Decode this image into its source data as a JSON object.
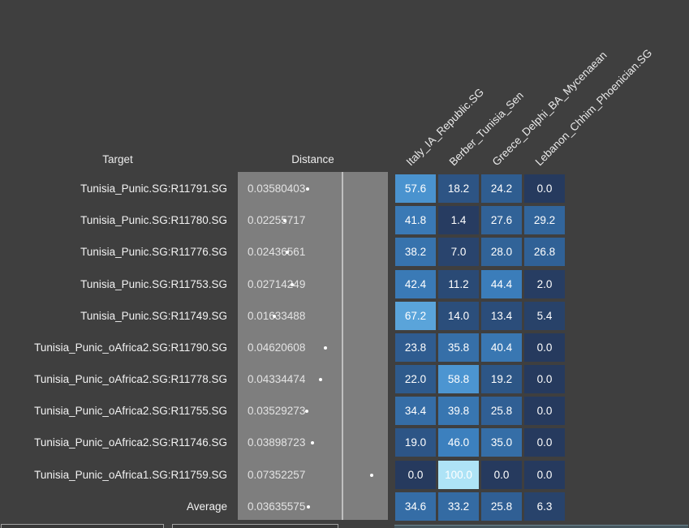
{
  "page": {
    "background": "#3f3f3f",
    "text_color": "#ececec"
  },
  "chart_data": {
    "type": "heatmap",
    "target_header": "Target",
    "distance_header": "Distance",
    "columns": [
      "Italy_IA_Republic.SG",
      "Berber_Tunisia_Sen",
      "Greece_Delphi_BA_Mycenaean",
      "Lebanon_Chhim_Phoenician.SG"
    ],
    "rows": [
      {
        "target": "Tunisia_Punic.SG:R11791.SG",
        "distance": "0.03580403",
        "values": [
          57.6,
          18.2,
          24.2,
          0.0
        ]
      },
      {
        "target": "Tunisia_Punic.SG:R11780.SG",
        "distance": "0.02255717",
        "values": [
          41.8,
          1.4,
          27.6,
          29.2
        ]
      },
      {
        "target": "Tunisia_Punic.SG:R11776.SG",
        "distance": "0.02436561",
        "values": [
          38.2,
          7.0,
          28.0,
          26.8
        ]
      },
      {
        "target": "Tunisia_Punic.SG:R11753.SG",
        "distance": "0.02714249",
        "values": [
          42.4,
          11.2,
          44.4,
          2.0
        ]
      },
      {
        "target": "Tunisia_Punic.SG:R11749.SG",
        "distance": "0.01633488",
        "values": [
          67.2,
          14.0,
          13.4,
          5.4
        ]
      },
      {
        "target": "Tunisia_Punic_oAfrica2.SG:R11790.SG",
        "distance": "0.04620608",
        "values": [
          23.8,
          35.8,
          40.4,
          0.0
        ]
      },
      {
        "target": "Tunisia_Punic_oAfrica2.SG:R11778.SG",
        "distance": "0.04334474",
        "values": [
          22.0,
          58.8,
          19.2,
          0.0
        ]
      },
      {
        "target": "Tunisia_Punic_oAfrica2.SG:R11755.SG",
        "distance": "0.03529273",
        "values": [
          34.4,
          39.8,
          25.8,
          0.0
        ]
      },
      {
        "target": "Tunisia_Punic_oAfrica2.SG:R11746.SG",
        "distance": "0.03898723",
        "values": [
          19.0,
          46.0,
          35.0,
          0.0
        ]
      },
      {
        "target": "Tunisia_Punic_oAfrica1.SG:R11759.SG",
        "distance": "0.07352257",
        "values": [
          0.0,
          100.0,
          0.0,
          0.0
        ]
      },
      {
        "target": "Average",
        "distance": "0.03635575",
        "values": [
          34.6,
          33.2,
          25.8,
          6.3
        ]
      }
    ],
    "distance_axis": {
      "min": 0,
      "max": 0.08
    },
    "heat_scale": [
      {
        "value": 0,
        "color": "#263a5e"
      },
      {
        "value": 25,
        "color": "#2f5e92"
      },
      {
        "value": 50,
        "color": "#3f86c6"
      },
      {
        "value": 65,
        "color": "#55a0d8"
      },
      {
        "value": 80,
        "color": "#79bce8"
      },
      {
        "value": 100,
        "color": "#aee3f6"
      }
    ],
    "legend_position": "none",
    "grid": false
  }
}
